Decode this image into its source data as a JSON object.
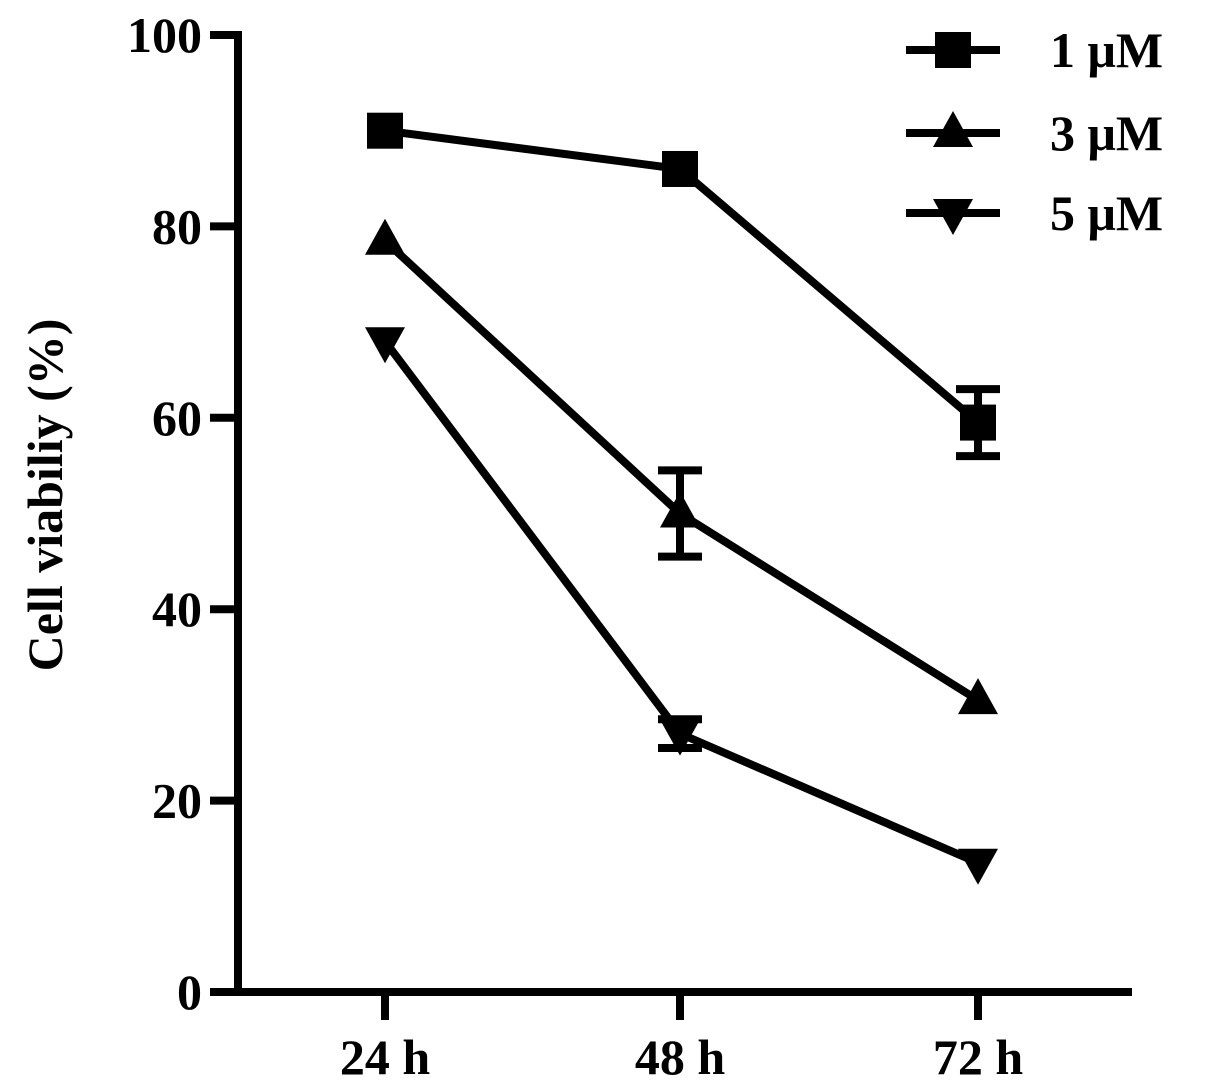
{
  "chart_data": {
    "type": "line",
    "title": "",
    "xlabel": "",
    "ylabel": "Cell viabiliy (%)",
    "categories": [
      "24 h",
      "48 h",
      "72 h"
    ],
    "ylim": [
      0,
      100
    ],
    "yticks": [
      0,
      20,
      40,
      60,
      80,
      100
    ],
    "grid": false,
    "legend_position": "top-right",
    "series": [
      {
        "name": "1 μM",
        "marker": "square",
        "values": [
          90,
          86,
          59.5
        ],
        "error": [
          0,
          0,
          3.5
        ]
      },
      {
        "name": "3 μM",
        "marker": "triangle-up",
        "values": [
          78.5,
          50,
          30.5
        ],
        "error": [
          0,
          4.5,
          0
        ]
      },
      {
        "name": "5 μM",
        "marker": "triangle-down",
        "values": [
          68,
          27,
          13.5
        ],
        "error": [
          0,
          1.5,
          0
        ]
      }
    ],
    "colors": {
      "line": "#000000",
      "background": "#ffffff"
    }
  }
}
